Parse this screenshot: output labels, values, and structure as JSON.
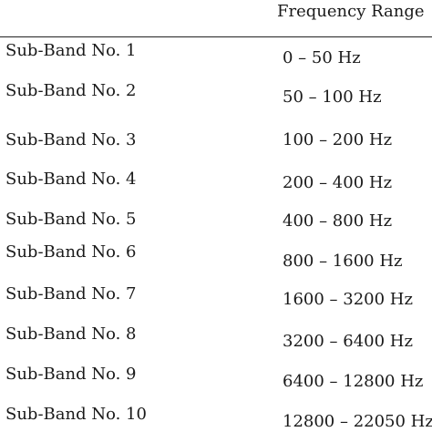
{
  "table": {
    "header": {
      "column_1": "",
      "column_2": "Frequency Range"
    },
    "rows": [
      {
        "label": "Sub-Band No. 1",
        "range": "0 – 50 Hz"
      },
      {
        "label": "Sub-Band No. 2",
        "range": "50 – 100 Hz"
      },
      {
        "label": "Sub-Band No. 3",
        "range": "100 – 200 Hz"
      },
      {
        "label": "Sub-Band No. 4",
        "range": "200 – 400 Hz"
      },
      {
        "label": "Sub-Band No. 5",
        "range": "400 – 800 Hz"
      },
      {
        "label": "Sub-Band No. 6",
        "range": "800 – 1600 Hz"
      },
      {
        "label": "Sub-Band No. 7",
        "range": "1600 – 3200 Hz"
      },
      {
        "label": "Sub-Band No. 8",
        "range": "3200 – 6400 Hz"
      },
      {
        "label": "Sub-Band No. 9",
        "range": "6400 – 12800 Hz"
      },
      {
        "label": "Sub-Band No. 10",
        "range": "12800 – 22050 Hz"
      }
    ]
  }
}
